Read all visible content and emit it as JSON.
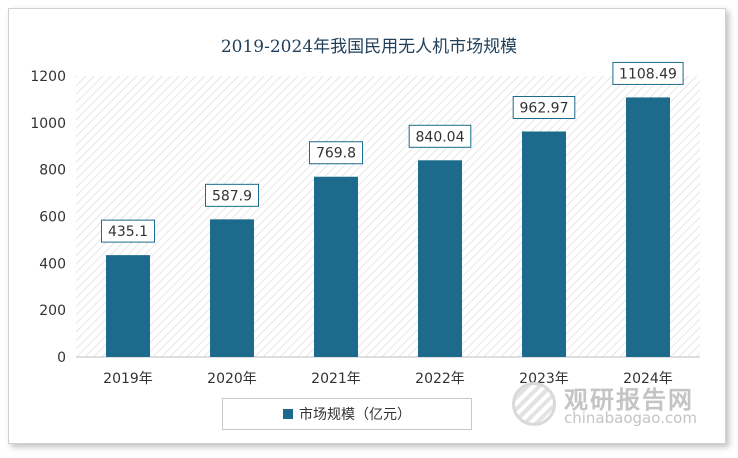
{
  "chart_data": {
    "type": "bar",
    "title": "2019-2024年我国民用无人机市场规模",
    "categories": [
      "2019年",
      "2020年",
      "2021年",
      "2022年",
      "2023年",
      "2024年"
    ],
    "series": [
      {
        "name": "市场规模（亿元）",
        "values": [
          435.1,
          587.9,
          769.8,
          840.04,
          962.97,
          1108.49
        ]
      }
    ],
    "data_labels": [
      "435.1",
      "587.9",
      "769.8",
      "840.04",
      "962.97",
      "1108.49"
    ],
    "yticks": [
      "0",
      "200",
      "400",
      "600",
      "800",
      "1000",
      "1200"
    ],
    "ylim": [
      0,
      1200
    ],
    "grid": false,
    "legend": "bottom",
    "bar_color": "#1d6b8c"
  },
  "watermark": {
    "name_cn": "观研报告网",
    "domain": "chinabaogao.com"
  }
}
